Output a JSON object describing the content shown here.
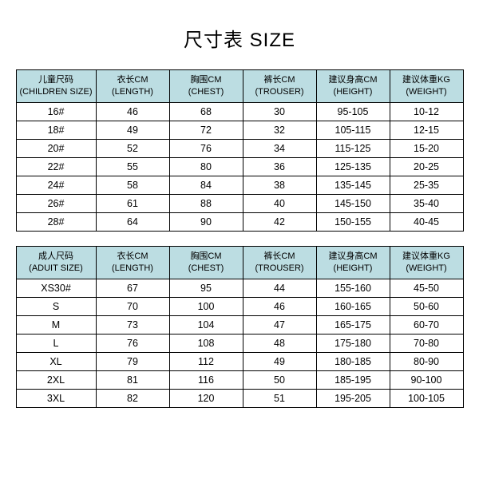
{
  "title": "尺寸表 SIZE",
  "children": {
    "headers": [
      {
        "cn": "儿童尺码",
        "en": "(CHILDREN SIZE)"
      },
      {
        "cn": "衣长CM",
        "en": "(LENGTH)"
      },
      {
        "cn": "胸围CM",
        "en": "(CHEST)"
      },
      {
        "cn": "裤长CM",
        "en": "(TROUSER)"
      },
      {
        "cn": "建议身高CM",
        "en": "(HEIGHT)"
      },
      {
        "cn": "建议体重KG",
        "en": "(WEIGHT)"
      }
    ],
    "rows": [
      [
        "16#",
        "46",
        "68",
        "30",
        "95-105",
        "10-12"
      ],
      [
        "18#",
        "49",
        "72",
        "32",
        "105-115",
        "12-15"
      ],
      [
        "20#",
        "52",
        "76",
        "34",
        "115-125",
        "15-20"
      ],
      [
        "22#",
        "55",
        "80",
        "36",
        "125-135",
        "20-25"
      ],
      [
        "24#",
        "58",
        "84",
        "38",
        "135-145",
        "25-35"
      ],
      [
        "26#",
        "61",
        "88",
        "40",
        "145-150",
        "35-40"
      ],
      [
        "28#",
        "64",
        "90",
        "42",
        "150-155",
        "40-45"
      ]
    ]
  },
  "adult": {
    "headers": [
      {
        "cn": "成人尺码",
        "en": "(ADUIT SIZE)"
      },
      {
        "cn": "衣长CM",
        "en": "(LENGTH)"
      },
      {
        "cn": "胸围CM",
        "en": "(CHEST)"
      },
      {
        "cn": "裤长CM",
        "en": "(TROUSER)"
      },
      {
        "cn": "建议身高CM",
        "en": "(HEIGHT)"
      },
      {
        "cn": "建议体重KG",
        "en": "(WEIGHT)"
      }
    ],
    "rows": [
      [
        "XS30#",
        "67",
        "95",
        "44",
        "155-160",
        "45-50"
      ],
      [
        "S",
        "70",
        "100",
        "46",
        "160-165",
        "50-60"
      ],
      [
        "M",
        "73",
        "104",
        "47",
        "165-175",
        "60-70"
      ],
      [
        "L",
        "76",
        "108",
        "48",
        "175-180",
        "70-80"
      ],
      [
        "XL",
        "79",
        "112",
        "49",
        "180-185",
        "80-90"
      ],
      [
        "2XL",
        "81",
        "116",
        "50",
        "185-195",
        "90-100"
      ],
      [
        "3XL",
        "82",
        "120",
        "51",
        "195-205",
        "100-105"
      ]
    ]
  },
  "style": {
    "header_bg": "#bcdde2",
    "border_color": "#000000",
    "background": "#ffffff",
    "title_fontsize": 24,
    "header_fontsize": 11,
    "cell_fontsize": 12.5
  }
}
